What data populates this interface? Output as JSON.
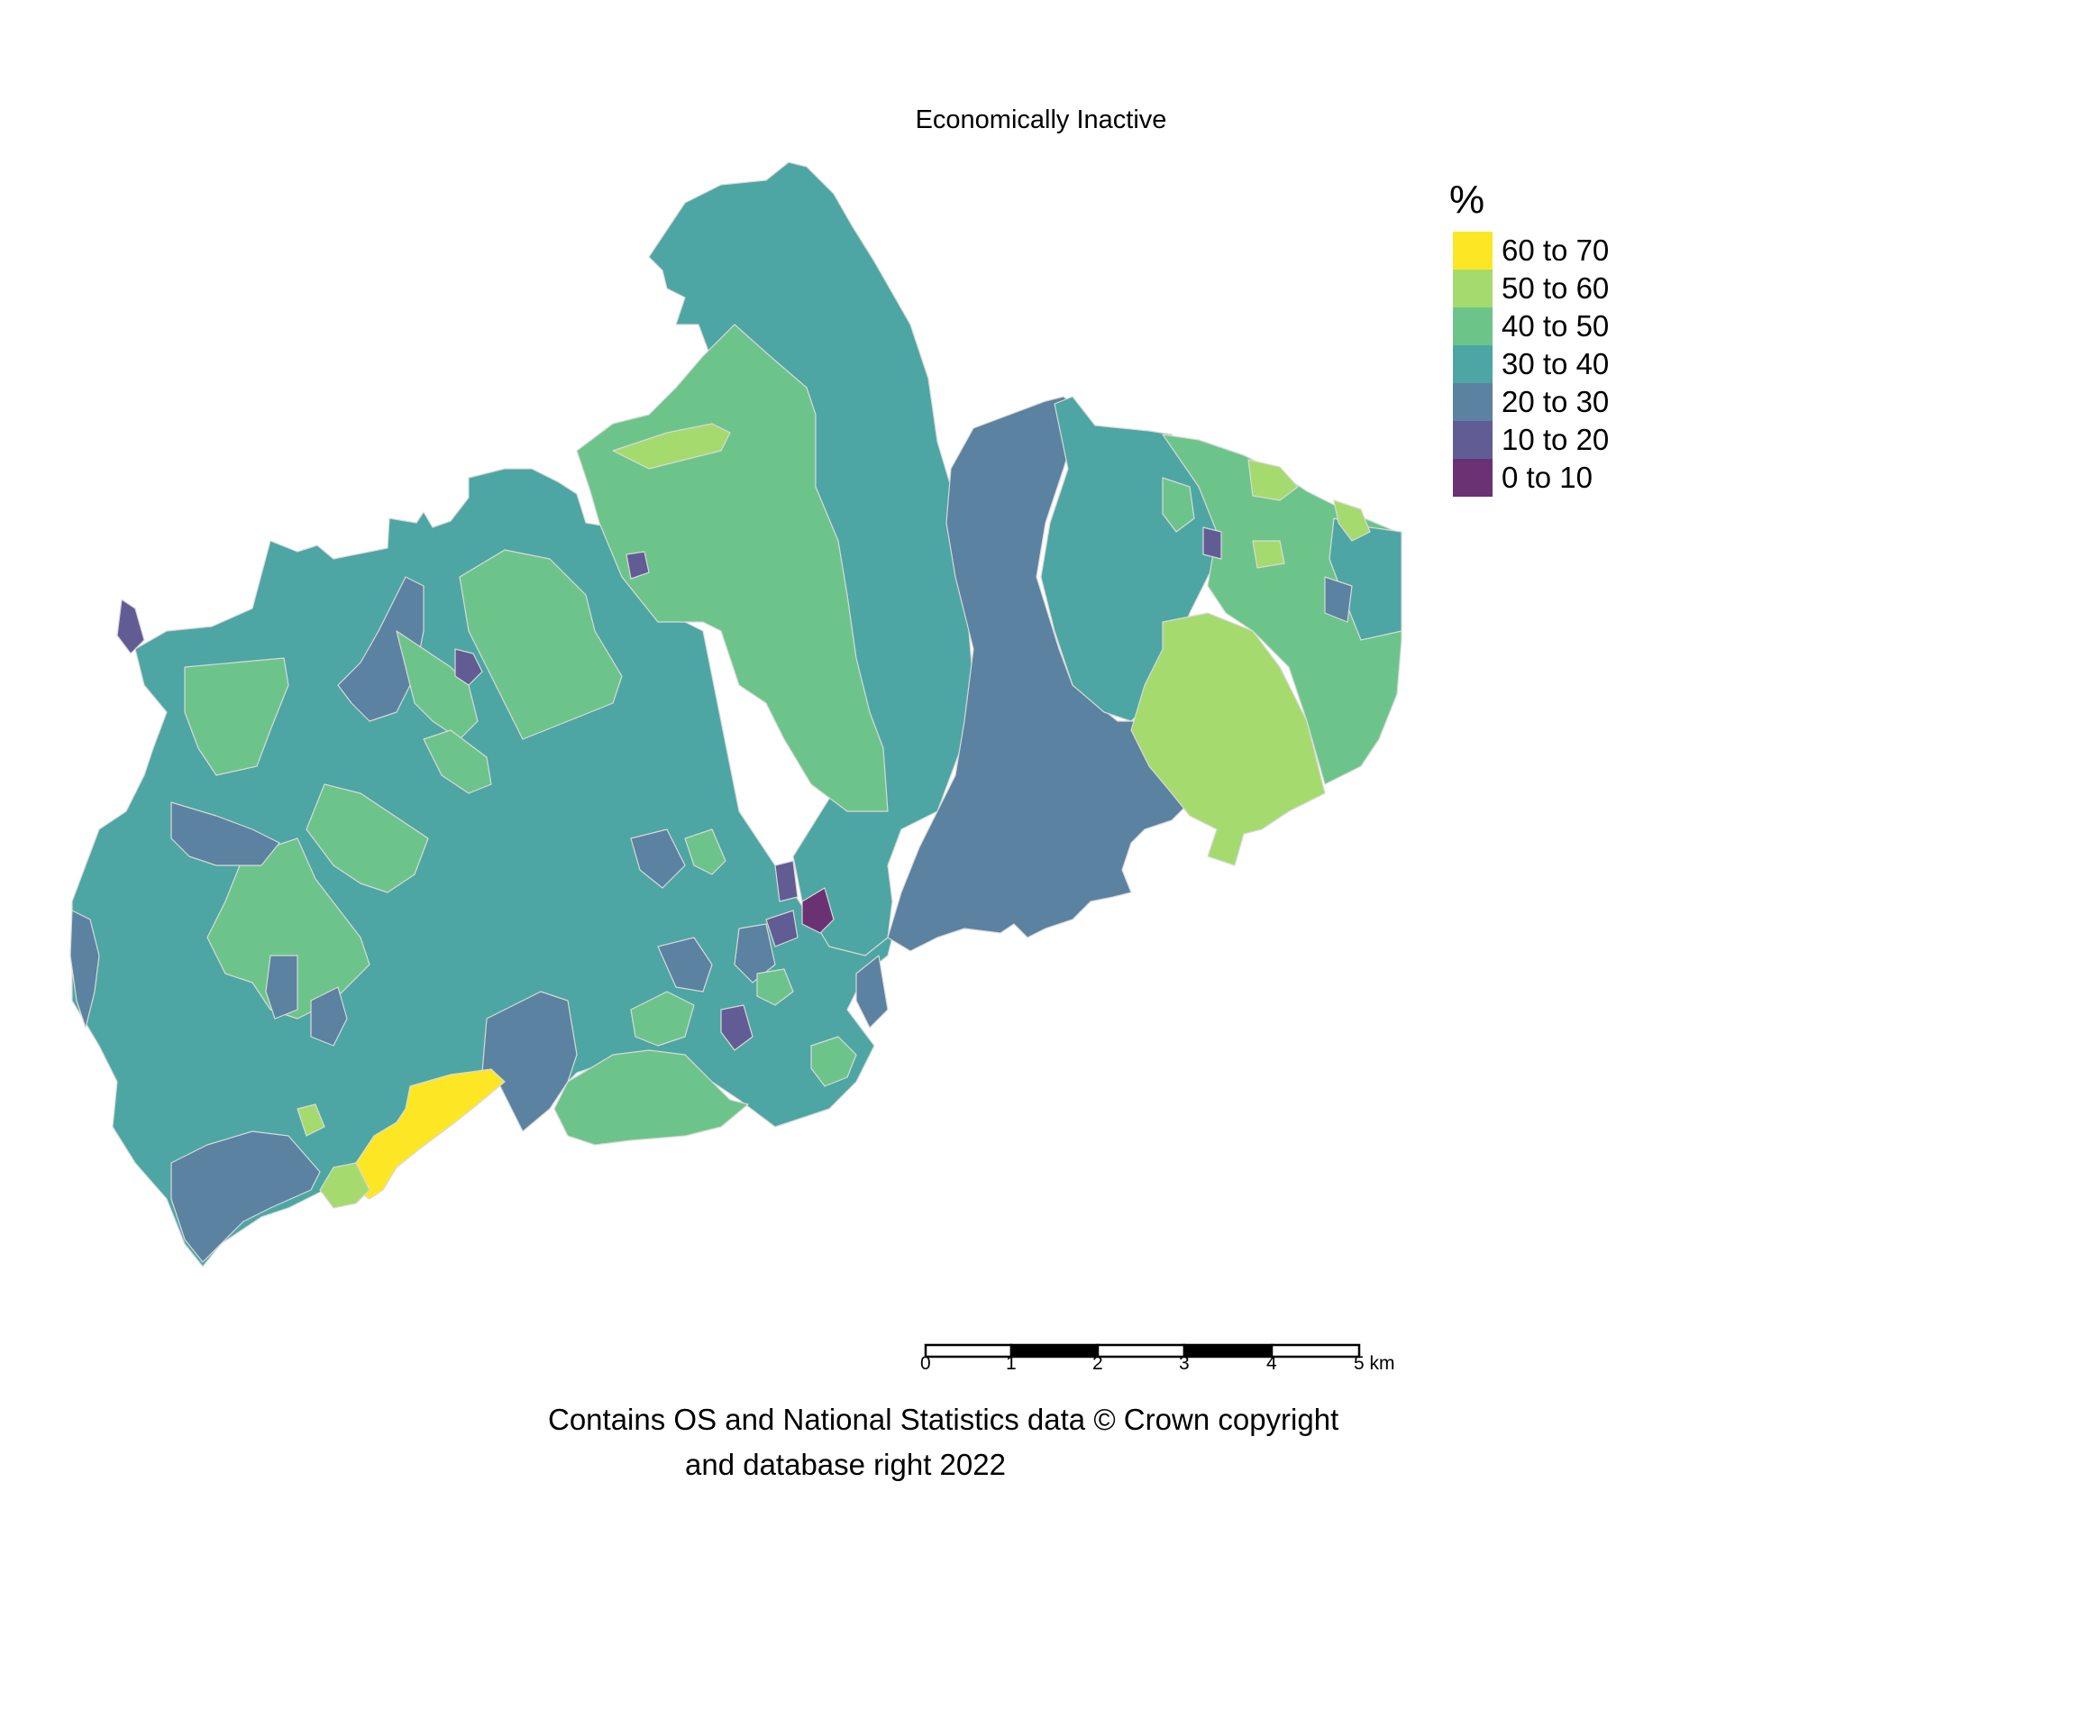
{
  "title": "Economically Inactive",
  "legend": {
    "title": "%",
    "items": [
      {
        "label": "60 to 70",
        "color": "#fde725"
      },
      {
        "label": "50 to 60",
        "color": "#a5db6e"
      },
      {
        "label": "40 to 50",
        "color": "#6dc48b"
      },
      {
        "label": "30 to 40",
        "color": "#4da6a3"
      },
      {
        "label": "20 to 30",
        "color": "#5b82a0"
      },
      {
        "label": "10 to 20",
        "color": "#625c94"
      },
      {
        "label": "0 to 10",
        "color": "#6a3273"
      }
    ]
  },
  "scale_bar": {
    "ticks": [
      "0",
      "1",
      "2",
      "3",
      "4",
      "5 km"
    ]
  },
  "attribution": {
    "line1": "Contains OS and National Statistics data © Crown copyright",
    "line2": "and database right 2022"
  }
}
